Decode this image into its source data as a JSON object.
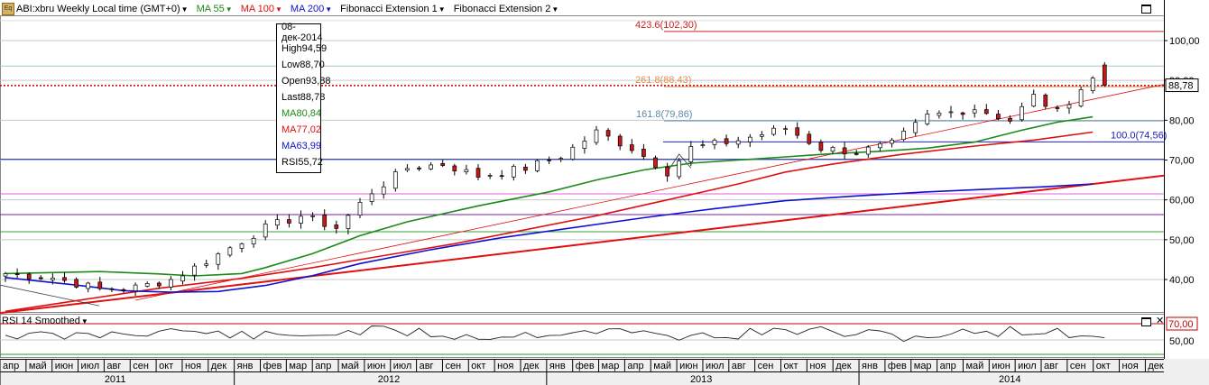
{
  "toolbar": {
    "logo_text": "Eq",
    "symbol": "ABI:xbru Weekly Local time (GMT+0)",
    "indicators": [
      {
        "label": "MA 55",
        "color": "#1a8a1a"
      },
      {
        "label": "MA 100",
        "color": "#e01010"
      },
      {
        "label": "MA 200",
        "color": "#1010d0"
      },
      {
        "label": "Fibonacci Extension 1",
        "color": "#000000"
      },
      {
        "label": "Fibonacci Extension 2",
        "color": "#000000"
      }
    ]
  },
  "info_box": {
    "date": "08-дек-2014",
    "rows": [
      {
        "label": "High",
        "value": "94,59",
        "color": "#000000"
      },
      {
        "label": "Low",
        "value": "88,70",
        "color": "#000000"
      },
      {
        "label": "Open",
        "value": "93,88",
        "color": "#000000"
      },
      {
        "label": "Last",
        "value": "88,78",
        "color": "#000000"
      },
      {
        "label": "MA",
        "value": "80,84",
        "color": "#1a8a1a"
      },
      {
        "label": "MA",
        "value": "77,02",
        "color": "#e01010"
      },
      {
        "label": "MA",
        "value": "63,99",
        "color": "#1010d0"
      },
      {
        "label": "RSI",
        "value": "55,72",
        "color": "#000000"
      }
    ]
  },
  "fib_labels": [
    {
      "text": "423.6(102,30)",
      "price": 102.3,
      "color": "#d02020"
    },
    {
      "text": "261.8(88,43)",
      "price": 88.43,
      "color": "#e09050"
    },
    {
      "text": "161.8(79,86)",
      "price": 79.86,
      "color": "#5a8aa8"
    },
    {
      "text": "100.0(74,56)",
      "price": 74.56,
      "color": "#2020c0"
    }
  ],
  "last_price_label": "88,78",
  "rsi": {
    "label": "RSI 14 Smoothed",
    "level_label": "70,00",
    "mid_label": "50,00"
  },
  "chart_data": {
    "type": "candlestick",
    "timeframe": "Weekly",
    "y_axis": {
      "ticks": [
        "40,00",
        "50,00",
        "60,00",
        "70,00",
        "80,00",
        "90,00",
        "100,00"
      ],
      "range": [
        33,
        107
      ]
    },
    "last": 88.78,
    "ohlc_last_bar": {
      "date": "08-дек-2014",
      "high": 94.59,
      "low": 88.7,
      "open": 93.88,
      "last": 88.78
    },
    "series": [
      {
        "name": "MA 55",
        "color": "#1a8a1a",
        "points": [
          [
            0,
            41.5
          ],
          [
            8,
            42
          ],
          [
            13,
            41.4
          ],
          [
            16,
            40.9
          ],
          [
            20,
            41.5
          ],
          [
            22,
            43
          ],
          [
            26,
            46.5
          ],
          [
            30,
            51
          ],
          [
            34,
            54.5
          ],
          [
            40,
            58.5
          ],
          [
            46,
            62
          ],
          [
            50,
            65
          ],
          [
            54,
            67.5
          ],
          [
            58,
            69.2
          ],
          [
            62,
            70
          ],
          [
            66,
            70.8
          ],
          [
            70,
            71.6
          ],
          [
            74,
            72.2
          ],
          [
            78,
            73
          ],
          [
            82,
            74.5
          ],
          [
            86,
            77.5
          ],
          [
            89,
            79.5
          ],
          [
            92,
            80.84
          ]
        ]
      },
      {
        "name": "MA 100",
        "color": "#e01010",
        "points": [
          [
            0,
            32
          ],
          [
            13,
            37.8
          ],
          [
            20,
            40.3
          ],
          [
            26,
            43
          ],
          [
            32,
            46
          ],
          [
            38,
            49
          ],
          [
            44,
            52.5
          ],
          [
            50,
            56
          ],
          [
            56,
            60
          ],
          [
            62,
            64
          ],
          [
            66,
            67
          ],
          [
            70,
            69
          ],
          [
            76,
            71.5
          ],
          [
            82,
            73.5
          ],
          [
            87,
            75
          ],
          [
            92,
            77.02
          ]
        ]
      },
      {
        "name": "MA 200",
        "color": "#1010d0",
        "points": [
          [
            0,
            40.5
          ],
          [
            6,
            38.6
          ],
          [
            10,
            37.2
          ],
          [
            14,
            36.8
          ],
          [
            18,
            37
          ],
          [
            22,
            38.5
          ],
          [
            26,
            41
          ],
          [
            30,
            44
          ],
          [
            36,
            47.5
          ],
          [
            42,
            50.5
          ],
          [
            48,
            53
          ],
          [
            54,
            55.5
          ],
          [
            60,
            57.8
          ],
          [
            66,
            59.8
          ],
          [
            72,
            61
          ],
          [
            78,
            62
          ],
          [
            84,
            62.8
          ],
          [
            88,
            63.3
          ],
          [
            92,
            63.99
          ]
        ]
      }
    ],
    "x_axis": {
      "months": [
        "апр",
        "май",
        "июн",
        "июл",
        "авг",
        "сен",
        "окт",
        "ноя",
        "дек",
        "янв",
        "фев",
        "мар",
        "апр",
        "май",
        "июн",
        "июл",
        "авг",
        "сен",
        "окт",
        "ноя",
        "дек",
        "янв",
        "фев",
        "мар",
        "апр",
        "май",
        "июн",
        "июл",
        "авг",
        "сен",
        "окт",
        "ноя",
        "дек",
        "янв",
        "фев",
        "мар",
        "апр",
        "май",
        "июн",
        "июл",
        "авг",
        "сен",
        "окт",
        "ноя",
        "дек"
      ],
      "years": [
        "2011",
        "2012",
        "2013",
        "2014"
      ]
    }
  }
}
